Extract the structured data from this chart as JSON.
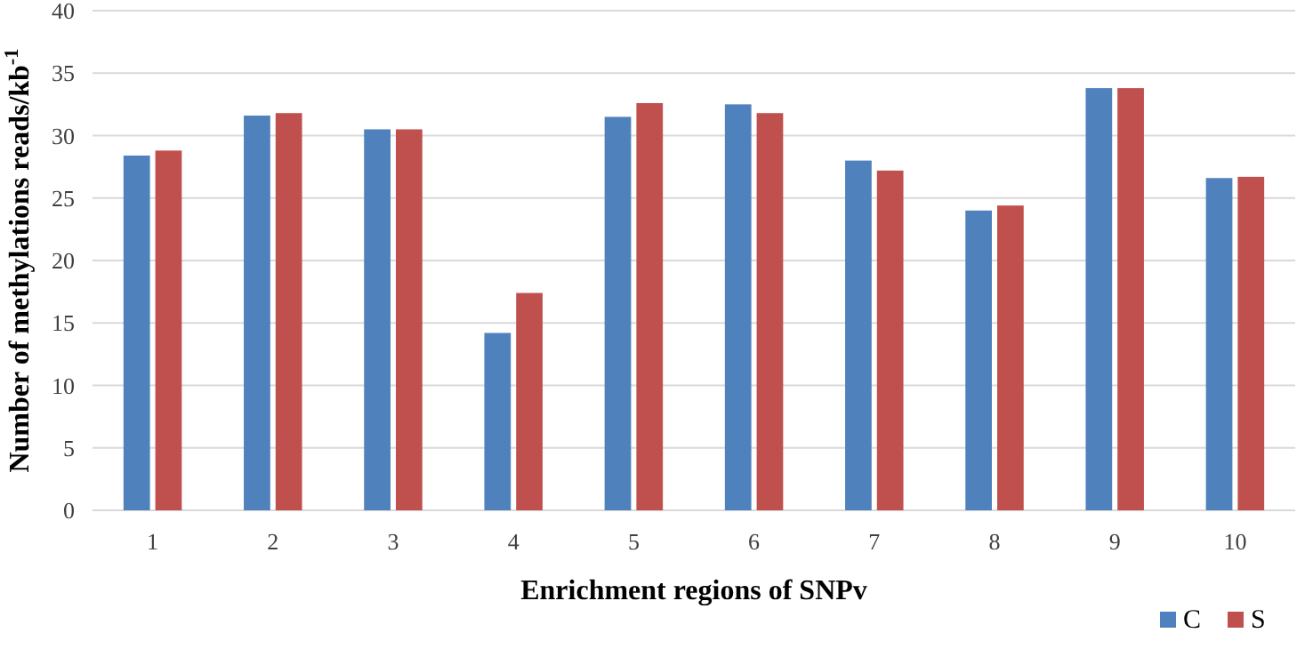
{
  "chart_data": {
    "type": "bar",
    "xlabel": "Enrichment regions of SNPv",
    "ylabel": "Number of methylations reads/kb$^{-1}$",
    "categories": [
      "1",
      "2",
      "3",
      "4",
      "5",
      "6",
      "7",
      "8",
      "9",
      "10"
    ],
    "series": [
      {
        "name": "C",
        "color": "#4f81bd",
        "values": [
          28.4,
          31.6,
          30.5,
          14.2,
          31.5,
          32.5,
          28.0,
          24.0,
          33.8,
          26.6
        ]
      },
      {
        "name": "S",
        "color": "#c0504d",
        "values": [
          28.8,
          31.8,
          30.5,
          17.4,
          32.6,
          31.8,
          27.2,
          24.4,
          33.8,
          26.7
        ]
      }
    ],
    "ylim": [
      0,
      40
    ],
    "yticks": [
      0,
      5,
      10,
      15,
      20,
      25,
      30,
      35,
      40
    ],
    "grid": "y",
    "legend": "bottom right"
  }
}
